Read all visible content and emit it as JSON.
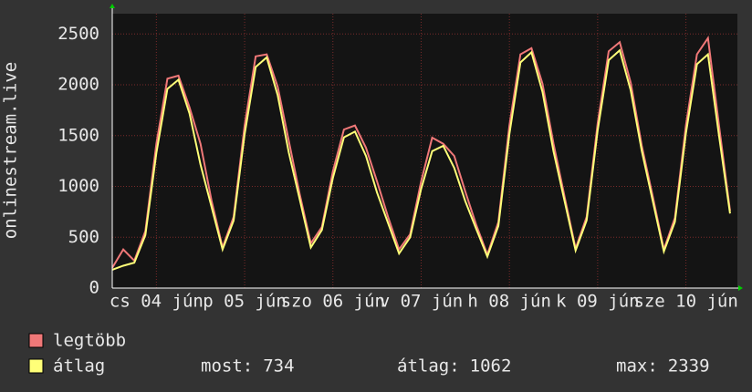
{
  "chart_data": {
    "type": "line",
    "y_label": "onlinestream.live",
    "x": [
      0,
      3,
      6,
      9,
      12,
      15,
      18,
      21,
      24,
      27,
      30,
      33,
      36,
      39,
      42,
      45,
      48,
      51,
      54,
      57,
      60,
      63,
      66,
      69,
      72,
      75,
      78,
      81,
      84,
      87,
      90,
      93,
      96,
      99,
      102,
      105,
      108,
      111,
      114,
      117,
      120,
      123,
      126,
      129,
      132,
      135,
      138,
      141,
      144,
      147,
      150,
      153,
      156,
      159,
      162,
      165,
      168
    ],
    "xlim": [
      0,
      170
    ],
    "xticks": [
      {
        "value": 12,
        "label": "cs 04 jún"
      },
      {
        "value": 36,
        "label": "p 05 jún"
      },
      {
        "value": 60,
        "label": "szo 06 jún"
      },
      {
        "value": 84,
        "label": "v 07 jún"
      },
      {
        "value": 108,
        "label": "h 08 jún"
      },
      {
        "value": 132,
        "label": "k 09 jún"
      },
      {
        "value": 156,
        "label": "sze 10 jún"
      }
    ],
    "ylim": [
      0,
      2700
    ],
    "yticks": [
      0,
      500,
      1000,
      1500,
      2000,
      2500
    ],
    "grid": true,
    "series": [
      {
        "name": "legtöbb",
        "color": "#f07878",
        "values": [
          200,
          380,
          270,
          560,
          1420,
          2060,
          2090,
          1780,
          1420,
          860,
          400,
          700,
          1600,
          2280,
          2300,
          1980,
          1450,
          920,
          440,
          600,
          1150,
          1560,
          1600,
          1380,
          1050,
          700,
          380,
          530,
          1050,
          1480,
          1420,
          1300,
          950,
          620,
          330,
          650,
          1600,
          2300,
          2360,
          2010,
          1420,
          900,
          390,
          700,
          1620,
          2330,
          2420,
          2020,
          1400,
          900,
          380,
          690,
          1600,
          2300,
          2460,
          1600,
          760
        ]
      },
      {
        "name": "átlag",
        "color": "#ffff78",
        "values": [
          180,
          220,
          250,
          520,
          1330,
          1960,
          2050,
          1720,
          1215,
          800,
          380,
          664,
          1514,
          2175,
          2270,
          1896,
          1335,
          870,
          400,
          571,
          1084,
          1483,
          1540,
          1300,
          940,
          640,
          340,
          499,
          976,
          1347,
          1400,
          1182,
          855,
          580,
          310,
          612,
          1516,
          2220,
          2320,
          1930,
          1345,
          857,
          370,
          666,
          1552,
          2242,
          2339,
          1944,
          1350,
          855,
          360,
          651,
          1524,
          2203,
          2300,
          1500,
          734
        ]
      }
    ],
    "stats": [
      {
        "label": "most:",
        "value": 734
      },
      {
        "label": "átlag:",
        "value": 1062
      },
      {
        "label": "max:",
        "value": 2339
      }
    ]
  }
}
